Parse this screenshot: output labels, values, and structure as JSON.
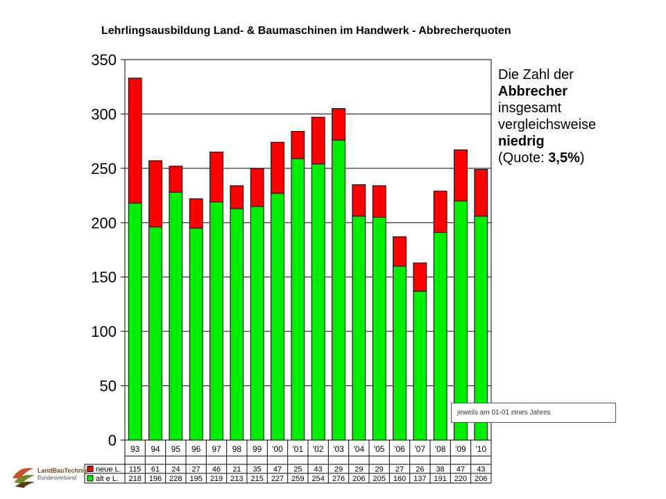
{
  "title": "Lehrlingsausbildung Land- & Baumaschinen im Handwerk - Abbrecherquoten",
  "callout": {
    "line1": "Die Zahl der",
    "line2": "Abbrecher",
    "line3": "insgesamt",
    "line4": "vergleichsweise",
    "line5": "niedrig",
    "line6_pre": "(Quote: ",
    "line6_val": "3,5%",
    "line6_post": ")"
  },
  "note": "jeweils am 01-01 eines  Jahres",
  "logo": {
    "line1": "LandBauTechnik",
    "line2": "Bundesverband"
  },
  "chart_data": {
    "type": "bar",
    "stacked": true,
    "title": "Lehrlingsausbildung Land- & Baumaschinen im Handwerk - Abbrecherquoten",
    "categories": [
      "93",
      "94",
      "95",
      "96",
      "97",
      "98",
      "99",
      "'00",
      "'01",
      "'02",
      "'03",
      "'04",
      "'05",
      "'06",
      "'07",
      "'08",
      "'09",
      "'10"
    ],
    "series": [
      {
        "name": "alt e L.",
        "color": "#00ee00",
        "values": [
          218,
          196,
          228,
          195,
          219,
          213,
          215,
          227,
          259,
          254,
          276,
          206,
          205,
          160,
          137,
          191,
          220,
          206
        ]
      },
      {
        "name": "neue L.",
        "color": "#ff0000",
        "values": [
          115,
          61,
          24,
          27,
          46,
          21,
          35,
          47,
          25,
          43,
          29,
          29,
          29,
          27,
          26,
          38,
          47,
          43
        ]
      }
    ],
    "ylim": [
      0,
      350
    ],
    "yticks": [
      0,
      50,
      100,
      150,
      200,
      250,
      300,
      350
    ],
    "grid": true,
    "legend": "data-table-below"
  }
}
